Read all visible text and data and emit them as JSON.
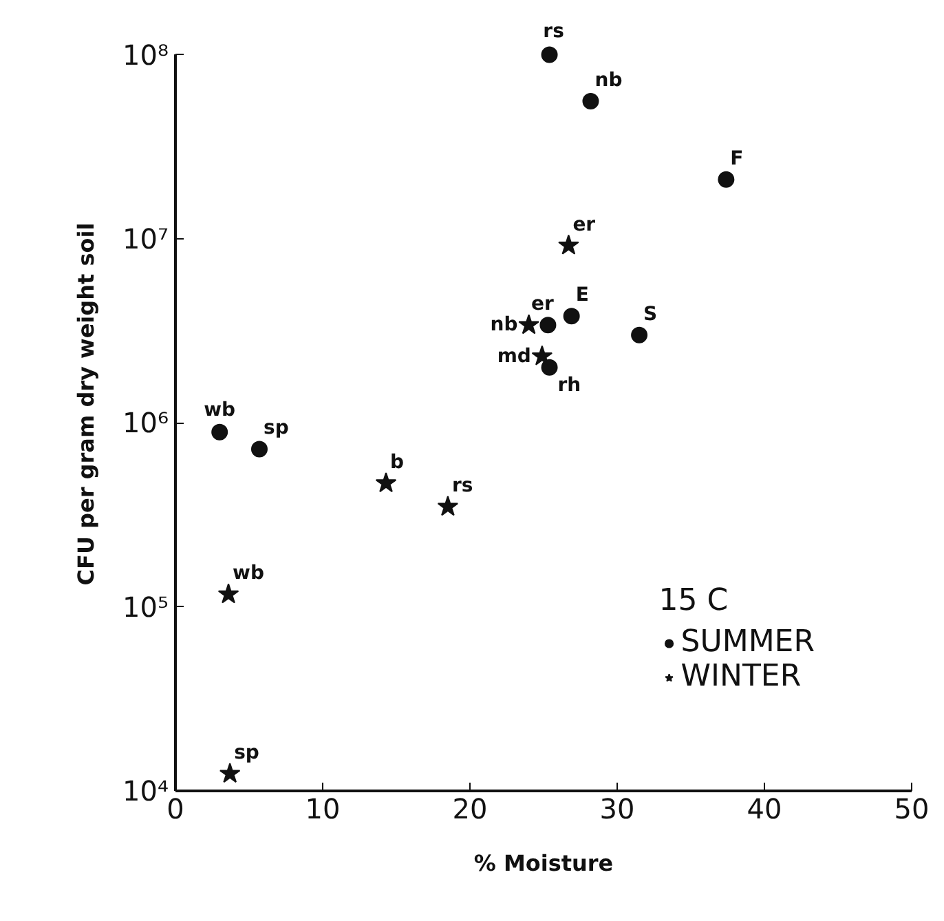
{
  "chart_data": {
    "type": "scatter",
    "xlabel": "% Moisture",
    "ylabel": "CFU per gram dry weight soil",
    "legend_title": "15 C",
    "series": [
      {
        "name": "SUMMER",
        "color": "#111111",
        "marker": "circle",
        "x": [
          25.4,
          28.2,
          37.4,
          25.3,
          26.9,
          31.5,
          25.4,
          3.0,
          5.7
        ],
        "values": [
          100000000,
          56000000,
          21000000,
          3400000,
          3800000,
          3000000,
          2000000,
          890000,
          720000
        ]
      },
      {
        "name": "WINTER",
        "color": "#111111",
        "marker": "star",
        "x": [
          26.7,
          24.0,
          24.9,
          14.3,
          18.5,
          3.6,
          3.7
        ],
        "values": [
          9200000,
          3400000,
          2300000,
          470000,
          350000,
          117000,
          12400
        ]
      }
    ],
    "annotations": [
      {
        "text": "rs",
        "x": 25.4,
        "y": 100000000
      },
      {
        "text": "nb",
        "x": 28.2,
        "y": 56000000
      },
      {
        "text": "F",
        "x": 37.4,
        "y": 21000000
      },
      {
        "text": "er",
        "x": 25.3,
        "y": 3400000
      },
      {
        "text": "E",
        "x": 26.9,
        "y": 3800000
      },
      {
        "text": "S",
        "x": 31.5,
        "y": 3000000
      },
      {
        "text": "rh",
        "x": 25.4,
        "y": 2000000
      },
      {
        "text": "wb",
        "x": 3.0,
        "y": 890000
      },
      {
        "text": "sp",
        "x": 5.7,
        "y": 720000
      },
      {
        "text": "er",
        "x": 26.7,
        "y": 9200000
      },
      {
        "text": "nb",
        "x": 24.0,
        "y": 3400000
      },
      {
        "text": "md",
        "x": 24.9,
        "y": 2300000
      },
      {
        "text": "b",
        "x": 14.3,
        "y": 470000
      },
      {
        "text": "rs",
        "x": 18.5,
        "y": 350000
      },
      {
        "text": "wb",
        "x": 3.6,
        "y": 117000
      },
      {
        "text": "sp",
        "x": 3.7,
        "y": 12400
      }
    ],
    "xlim": [
      0,
      50
    ],
    "xticks": [
      0,
      10,
      20,
      30,
      40,
      50
    ],
    "ylim": [
      10000,
      100000000
    ],
    "yticks": [
      {
        "value": 10000,
        "label": "10⁴"
      },
      {
        "value": 100000,
        "label": "10⁵"
      },
      {
        "value": 1000000,
        "label": "10⁶"
      },
      {
        "value": 10000000,
        "label": "10⁷"
      },
      {
        "value": 100000000,
        "label": "10⁸"
      }
    ],
    "log": "y",
    "grid": false,
    "legend": "bottom right"
  }
}
